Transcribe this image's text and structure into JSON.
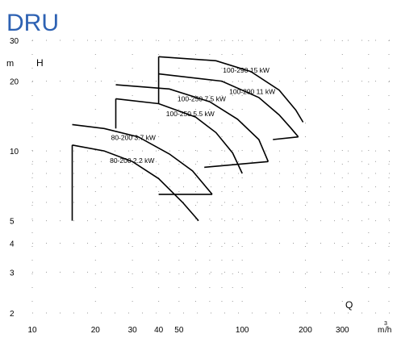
{
  "title": "DRU",
  "chart_data": {
    "type": "line",
    "title": "DRU",
    "x_axis": {
      "label": "Q",
      "unit_base": "m",
      "unit_exp": "3",
      "unit_tail": "/h",
      "scale": "log",
      "range": [
        10,
        500
      ],
      "ticks": [
        "10",
        "20",
        "30",
        "40",
        "50",
        "100",
        "200",
        "300"
      ]
    },
    "y_axis": {
      "label": "H",
      "unit": "m",
      "scale": "log",
      "range": [
        2,
        30
      ],
      "ticks": [
        "2",
        "3",
        "4",
        "5",
        "10",
        "20",
        "30"
      ]
    },
    "grid": "dotted",
    "series": [
      {
        "name": "80-200 2.2 kW",
        "color": "#000000",
        "curve": [
          [
            15.5,
            10.6
          ],
          [
            22,
            10.0
          ],
          [
            30,
            9.0
          ],
          [
            40,
            7.6
          ],
          [
            52,
            6.0
          ],
          [
            62,
            5.0
          ]
        ],
        "envelope": [
          [
            15.5,
            5.0
          ],
          [
            15.5,
            10.6
          ]
        ]
      },
      {
        "name": "80-200 3.7 kW",
        "color": "#000000",
        "curve": [
          [
            15.5,
            13.0
          ],
          [
            22,
            12.5
          ],
          [
            32,
            11.5
          ],
          [
            45,
            9.7
          ],
          [
            58,
            8.2
          ],
          [
            72,
            6.5
          ]
        ],
        "envelope": [
          [
            40,
            6.5
          ],
          [
            72,
            6.5
          ]
        ]
      },
      {
        "name": "100-250 5.5 kW",
        "color": "#000000",
        "curve": [
          [
            25,
            16.8
          ],
          [
            40,
            16.0
          ],
          [
            60,
            14.0
          ],
          [
            75,
            12.0
          ],
          [
            90,
            9.8
          ],
          [
            100,
            8.0
          ]
        ],
        "envelope": [
          [
            25,
            12.5
          ],
          [
            25,
            16.8
          ]
        ]
      },
      {
        "name": "100-250 7.5 kW",
        "color": "#000000",
        "curve": [
          [
            25,
            19.3
          ],
          [
            45,
            18.5
          ],
          [
            70,
            16.3
          ],
          [
            95,
            13.7
          ],
          [
            120,
            11.2
          ],
          [
            133,
            9.0
          ]
        ],
        "envelope": [
          [
            66,
            8.5
          ],
          [
            133,
            9.0
          ]
        ]
      },
      {
        "name": "100-290 11 kW",
        "color": "#000000",
        "curve": [
          [
            40,
            21.5
          ],
          [
            80,
            20.0
          ],
          [
            120,
            17.0
          ],
          [
            150,
            14.3
          ],
          [
            170,
            12.6
          ],
          [
            185,
            11.5
          ]
        ],
        "envelope": [
          [
            140,
            11.2
          ],
          [
            185,
            11.5
          ]
        ]
      },
      {
        "name": "100-290 15 kW",
        "color": "#000000",
        "curve": [
          [
            40,
            25.5
          ],
          [
            75,
            24.5
          ],
          [
            110,
            22.0
          ],
          [
            150,
            18.3
          ],
          [
            180,
            15.0
          ],
          [
            195,
            13.3
          ]
        ],
        "envelope": [
          [
            40,
            16.0
          ],
          [
            40,
            25.5
          ]
        ]
      }
    ]
  }
}
